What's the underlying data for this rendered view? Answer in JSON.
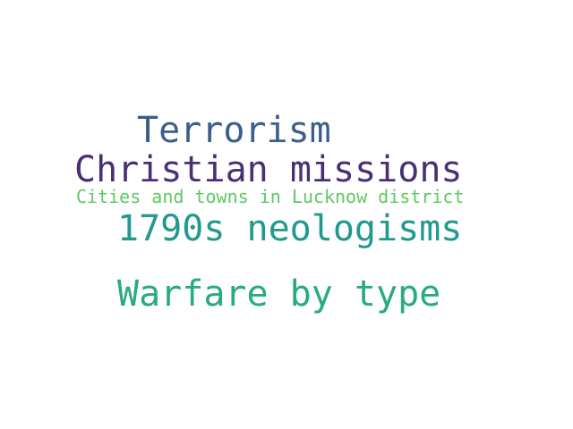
{
  "words": [
    {
      "text": "Terrorism",
      "color": "#3b5f8a"
    },
    {
      "text": "Christian missions",
      "color": "#482f76"
    },
    {
      "text": "Cities and towns in Lucknow district",
      "color": "#5ec962"
    },
    {
      "text": "1790s neologisms",
      "color": "#21998c"
    },
    {
      "text": "Warfare by type",
      "color": "#2aab7e"
    }
  ]
}
